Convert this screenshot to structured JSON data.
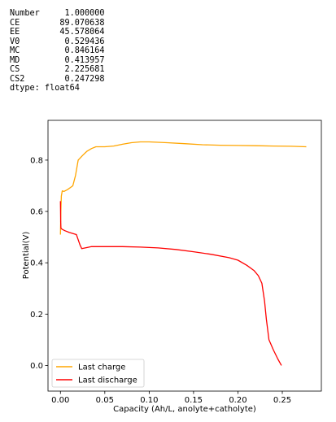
{
  "printout": {
    "rows": [
      {
        "key": "Number",
        "value": "1.000000"
      },
      {
        "key": "CE",
        "value": "89.070638"
      },
      {
        "key": "EE",
        "value": "45.578064"
      },
      {
        "key": "V0",
        "value": "0.529436"
      },
      {
        "key": "MC",
        "value": "0.846164"
      },
      {
        "key": "MD",
        "value": "0.413957"
      },
      {
        "key": "CS",
        "value": "2.225681"
      },
      {
        "key": "CS2",
        "value": "0.247298"
      }
    ],
    "dtype": "dtype: float64"
  },
  "chart_data": {
    "type": "line",
    "xlabel": "Capacity (Ah/L, anolyte+catholyte)",
    "ylabel": "Potential(V)",
    "xlim": [
      -0.014,
      0.294
    ],
    "ylim": [
      -0.1,
      0.955
    ],
    "xticks": [
      0.0,
      0.05,
      0.1,
      0.15,
      0.2,
      0.25
    ],
    "xtick_labels": [
      "0.00",
      "0.05",
      "0.10",
      "0.15",
      "0.20",
      "0.25"
    ],
    "yticks": [
      0.0,
      0.2,
      0.4,
      0.6,
      0.8
    ],
    "ytick_labels": [
      "0.0",
      "0.2",
      "0.4",
      "0.6",
      "0.8"
    ],
    "legend_position": "lower-left",
    "series": [
      {
        "name": "Last charge",
        "color": "#ffa500",
        "points": [
          [
            0.0,
            0.51
          ],
          [
            0.0005,
            0.6
          ],
          [
            0.001,
            0.66
          ],
          [
            0.002,
            0.68
          ],
          [
            0.004,
            0.678
          ],
          [
            0.008,
            0.685
          ],
          [
            0.014,
            0.7
          ],
          [
            0.017,
            0.74
          ],
          [
            0.02,
            0.8
          ],
          [
            0.025,
            0.818
          ],
          [
            0.03,
            0.835
          ],
          [
            0.035,
            0.845
          ],
          [
            0.04,
            0.852
          ],
          [
            0.05,
            0.852
          ],
          [
            0.06,
            0.855
          ],
          [
            0.07,
            0.862
          ],
          [
            0.08,
            0.868
          ],
          [
            0.09,
            0.871
          ],
          [
            0.1,
            0.871
          ],
          [
            0.12,
            0.868
          ],
          [
            0.14,
            0.864
          ],
          [
            0.16,
            0.86
          ],
          [
            0.18,
            0.858
          ],
          [
            0.2,
            0.857
          ],
          [
            0.22,
            0.856
          ],
          [
            0.24,
            0.855
          ],
          [
            0.26,
            0.854
          ],
          [
            0.277,
            0.852
          ]
        ]
      },
      {
        "name": "Last discharge",
        "color": "#ff0000",
        "points": [
          [
            0.0,
            0.64
          ],
          [
            0.0003,
            0.56
          ],
          [
            0.0006,
            0.535
          ],
          [
            0.002,
            0.53
          ],
          [
            0.005,
            0.525
          ],
          [
            0.01,
            0.518
          ],
          [
            0.018,
            0.51
          ],
          [
            0.02,
            0.49
          ],
          [
            0.022,
            0.47
          ],
          [
            0.024,
            0.455
          ],
          [
            0.028,
            0.458
          ],
          [
            0.035,
            0.463
          ],
          [
            0.05,
            0.463
          ],
          [
            0.07,
            0.463
          ],
          [
            0.09,
            0.461
          ],
          [
            0.11,
            0.458
          ],
          [
            0.13,
            0.452
          ],
          [
            0.15,
            0.443
          ],
          [
            0.17,
            0.433
          ],
          [
            0.19,
            0.42
          ],
          [
            0.2,
            0.41
          ],
          [
            0.21,
            0.39
          ],
          [
            0.218,
            0.37
          ],
          [
            0.223,
            0.35
          ],
          [
            0.227,
            0.32
          ],
          [
            0.23,
            0.25
          ],
          [
            0.232,
            0.18
          ],
          [
            0.235,
            0.1
          ],
          [
            0.24,
            0.06
          ],
          [
            0.245,
            0.025
          ],
          [
            0.249,
            0.0
          ]
        ]
      }
    ]
  }
}
